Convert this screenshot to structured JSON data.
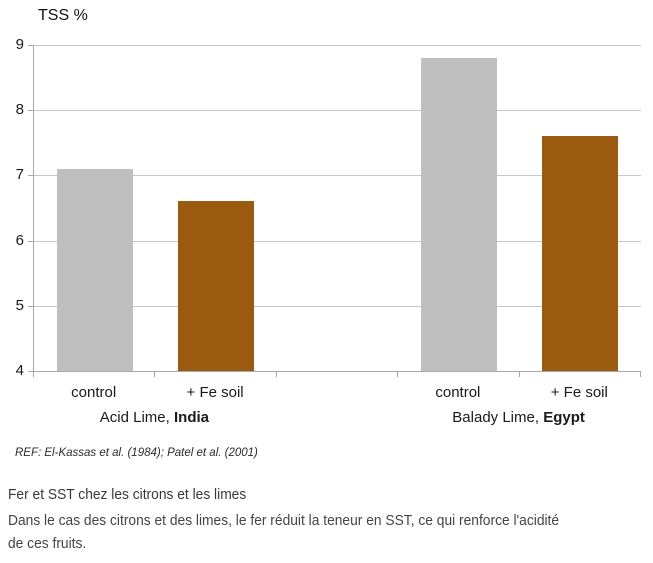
{
  "chart_data": {
    "type": "bar",
    "title": "TSS %",
    "ylabel": "TSS %",
    "ylim": [
      4,
      9
    ],
    "yticks": [
      4,
      5,
      6,
      7,
      8,
      9
    ],
    "grid": true,
    "legend_position": "none",
    "categories": [
      "control",
      "+ Fe soil",
      "",
      "control",
      "+ Fe soil"
    ],
    "values": [
      7.1,
      6.6,
      null,
      8.8,
      7.6
    ],
    "colors": [
      "#bfbfbf",
      "#9a5a0f",
      null,
      "#bfbfbf",
      "#9a5a0f"
    ],
    "groups": [
      {
        "plain": "Acid Lime, ",
        "bold": "India",
        "slot_start": 0,
        "slot_end": 1
      },
      {
        "plain": "Balady Lime, ",
        "bold": "Egypt",
        "slot_start": 3,
        "slot_end": 4
      }
    ]
  },
  "reference": {
    "text": "REF: El-Kassas et al. (1984); Patel et al. (2001)"
  },
  "caption": {
    "title": "Fer et SST chez les citrons et les limes",
    "body_line1": "Dans le cas des citrons et des limes, le fer réduit la teneur en SST, ce qui renforce l'acidité",
    "body_line2": "de ces fruits."
  },
  "colors": {
    "bar_control": "#bfbfbf",
    "bar_fe": "#9a5a0f",
    "gridline": "#c6c6c6",
    "axis": "#a8a8a8"
  }
}
